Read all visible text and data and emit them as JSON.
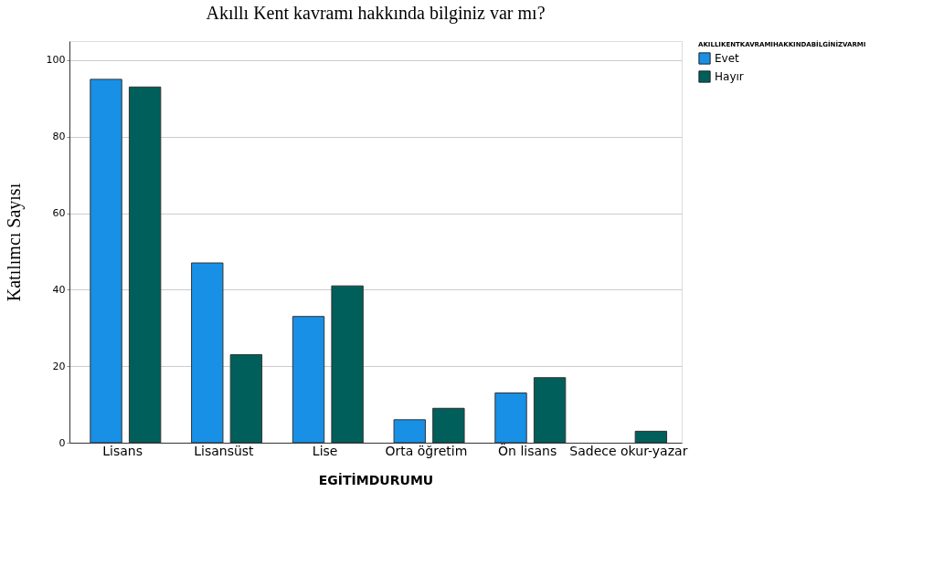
{
  "chart_data": {
    "type": "bar",
    "title": "Akıllı Kent kavramı hakkında bilginiz var mı?",
    "xlabel": "EGİTİMDURUMU",
    "ylabel": "Katılımcı Sayısı",
    "legend_title": "AKILLIKENTKAVRAMIHAKKINDABİLGİNİZVARMI",
    "categories": [
      "Lisans",
      "Lisansüst",
      "Lise",
      "Orta öğretim",
      "Ön lisans",
      "Sadece okur-yazar"
    ],
    "series": [
      {
        "name": "Evet",
        "color": "#1790e6",
        "values": [
          95,
          47,
          33,
          6,
          13,
          null
        ]
      },
      {
        "name": "Hayır",
        "color": "#005f5a",
        "values": [
          93,
          23,
          41,
          9,
          17,
          3
        ]
      }
    ],
    "ylim": [
      0,
      105
    ],
    "yticks": [
      0,
      20,
      40,
      60,
      80,
      100
    ],
    "grid": "y",
    "legend": "top right"
  }
}
